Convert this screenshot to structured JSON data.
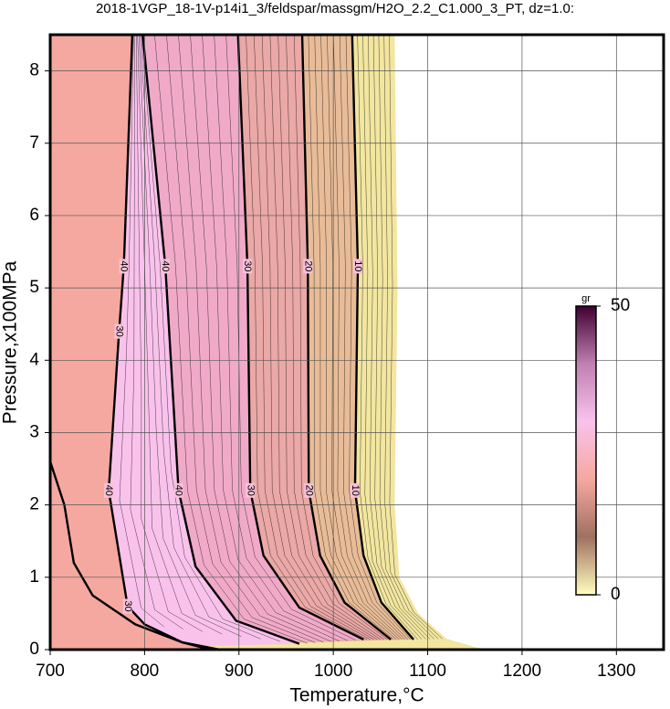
{
  "chart_data": {
    "type": "contour",
    "title": "2018-1VGP_18-1V-p14i1_3/feldspar/massgm/H2O_2.2_C1.000_3_PT, dz=1.0:",
    "xlabel": "Temperature,°C",
    "ylabel": "Pressure,x100MPa",
    "xlim": [
      700,
      1350
    ],
    "ylim": [
      0,
      8.5
    ],
    "xticks": [
      700,
      800,
      900,
      1000,
      1100,
      1200,
      1300
    ],
    "yticks": [
      0,
      1,
      2,
      3,
      4,
      5,
      6,
      7,
      8
    ],
    "grid": true,
    "contours": [
      {
        "x": [
          700,
          715,
          725,
          745,
          790,
          840,
          870
        ],
        "y": [
          2.6,
          2.0,
          1.2,
          0.75,
          0.35,
          0.1,
          0
        ]
      },
      {
        "labels": [
          "40",
          "30",
          "40",
          "30"
        ],
        "fill": "#f5a8a0",
        "x": [
          787,
          778,
          773,
          762,
          782,
          800,
          840,
          880
        ],
        "y": [
          8.5,
          5.3,
          4.4,
          2.2,
          0.6,
          0.35,
          0.1,
          0
        ]
      },
      {
        "labels": [
          "40",
          "40"
        ],
        "fill": "#f9c2ec",
        "x": [
          798,
          822,
          836,
          854,
          897,
          964
        ],
        "y": [
          8.5,
          5.3,
          2.2,
          1.15,
          0.4,
          0.08
        ]
      },
      {
        "labels": [
          "30",
          "30"
        ],
        "fill": "#f0aac8",
        "x": [
          899,
          909,
          912,
          926,
          964,
          1032
        ],
        "y": [
          8.5,
          5.3,
          2.2,
          1.3,
          0.58,
          0.14
        ]
      },
      {
        "labels": [
          "20",
          "20"
        ],
        "fill": "#eaa8a6",
        "x": [
          967,
          973,
          974,
          986,
          1012,
          1061
        ],
        "y": [
          8.5,
          5.3,
          2.2,
          1.3,
          0.65,
          0.14
        ]
      },
      {
        "labels": [
          "10",
          "10"
        ],
        "fill": "#e8bc98",
        "x": [
          1020,
          1026,
          1023,
          1032,
          1051,
          1085
        ],
        "y": [
          8.5,
          5.3,
          2.2,
          1.3,
          0.65,
          0.14
        ]
      },
      {
        "fill": "#f2e6a0",
        "x": [
          1065,
          1068,
          1065,
          1070,
          1090,
          1120,
          1160
        ],
        "y": [
          8.5,
          5,
          2,
          1,
          0.5,
          0.15,
          0
        ]
      }
    ],
    "colorbar": {
      "label": "gr",
      "lim": [
        0,
        50
      ],
      "ticks": [
        0,
        50
      ],
      "colors": [
        "#ffffc0",
        "#a07060",
        "#f5a8a0",
        "#f9c2ec",
        "#c080b0",
        "#400030"
      ]
    }
  }
}
